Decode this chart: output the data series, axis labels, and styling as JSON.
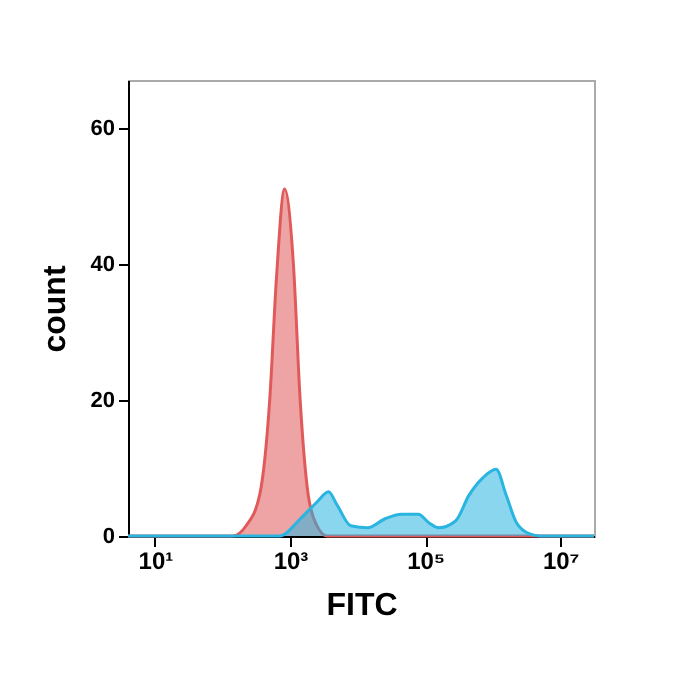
{
  "chart_data": {
    "type": "area",
    "xlabel": "FITC",
    "ylabel": "count",
    "log": "x",
    "grid": false,
    "xlim": [
      4,
      31600000
    ],
    "ylim": [
      0,
      67
    ],
    "xticks": [
      {
        "value": 10,
        "label": "10¹"
      },
      {
        "value": 1000,
        "label": "10³"
      },
      {
        "value": 100000,
        "label": "10⁵"
      },
      {
        "value": 10000000,
        "label": "10⁷"
      }
    ],
    "yticks": [
      0,
      20,
      40,
      60
    ],
    "series": [
      {
        "color": "#e05a5a",
        "x": [
          4,
          141,
          224,
          355,
          501,
          631,
          832,
          1122,
          1413,
          1862,
          2512,
          3548,
          31600000
        ],
        "values": [
          0,
          0,
          1.5,
          6,
          20,
          38,
          51,
          40,
          20,
          6,
          1.5,
          0,
          0
        ]
      },
      {
        "color": "#2ab4e0",
        "x": [
          4,
          708,
          1413,
          2512,
          3715,
          5012,
          7943,
          14125,
          25119,
          44668,
          79433,
          112202,
          158489,
          281838,
          446684,
          707946,
          1122018,
          1584893,
          2238721,
          3548134,
          5011872,
          31600000
        ],
        "values": [
          0,
          0,
          2.5,
          5,
          6.5,
          4.5,
          1.5,
          1.2,
          2.5,
          3.2,
          3.2,
          2,
          1.2,
          2.2,
          6,
          8.5,
          9.8,
          6,
          2,
          0.3,
          0,
          0
        ]
      }
    ]
  }
}
